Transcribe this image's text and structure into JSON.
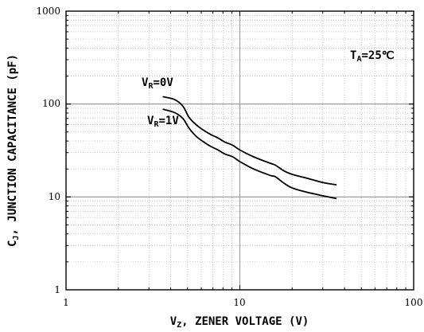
{
  "chart_data": {
    "type": "line",
    "xscale": "log",
    "yscale": "log",
    "xlim": [
      1,
      100
    ],
    "ylim": [
      1,
      1000
    ],
    "grid": true,
    "x_ticks": [
      "1",
      "10",
      "100"
    ],
    "y_ticks": [
      "1",
      "10",
      "100",
      "1000"
    ],
    "xlabel": {
      "main": "V",
      "sub": "Z",
      "rest": ", ZENER VOLTAGE (V)"
    },
    "ylabel": {
      "main": "C",
      "sub": "J",
      "rest": ", JUNCTION CAPACITANCE (pF)"
    },
    "condition": {
      "main": "T",
      "sub": "A",
      "rest": "=25℃"
    },
    "series": [
      {
        "label": {
          "main": "V",
          "sub": "R",
          "rest": "=0V"
        },
        "x": [
          3.6,
          4.2,
          4.7,
          5.1,
          5.6,
          6.2,
          6.8,
          7.5,
          8.2,
          9.1,
          10,
          12,
          15,
          16,
          18,
          20,
          24,
          30,
          36
        ],
        "y": [
          120,
          112,
          95,
          72,
          60,
          52,
          47,
          43,
          39,
          36,
          32,
          27,
          23,
          22,
          19,
          17.5,
          16,
          14.3,
          13.5
        ]
      },
      {
        "label": {
          "main": "V",
          "sub": "R",
          "rest": "=1V"
        },
        "x": [
          3.6,
          4.2,
          4.7,
          5.1,
          5.6,
          6.2,
          6.8,
          7.5,
          8.2,
          9.1,
          10,
          12,
          15,
          16,
          18,
          20,
          24,
          30,
          36
        ],
        "y": [
          88,
          81,
          70,
          55,
          45,
          39,
          35,
          32,
          29,
          27,
          24,
          20,
          17,
          16.5,
          14,
          12.5,
          11.3,
          10.3,
          9.6
        ]
      }
    ]
  }
}
